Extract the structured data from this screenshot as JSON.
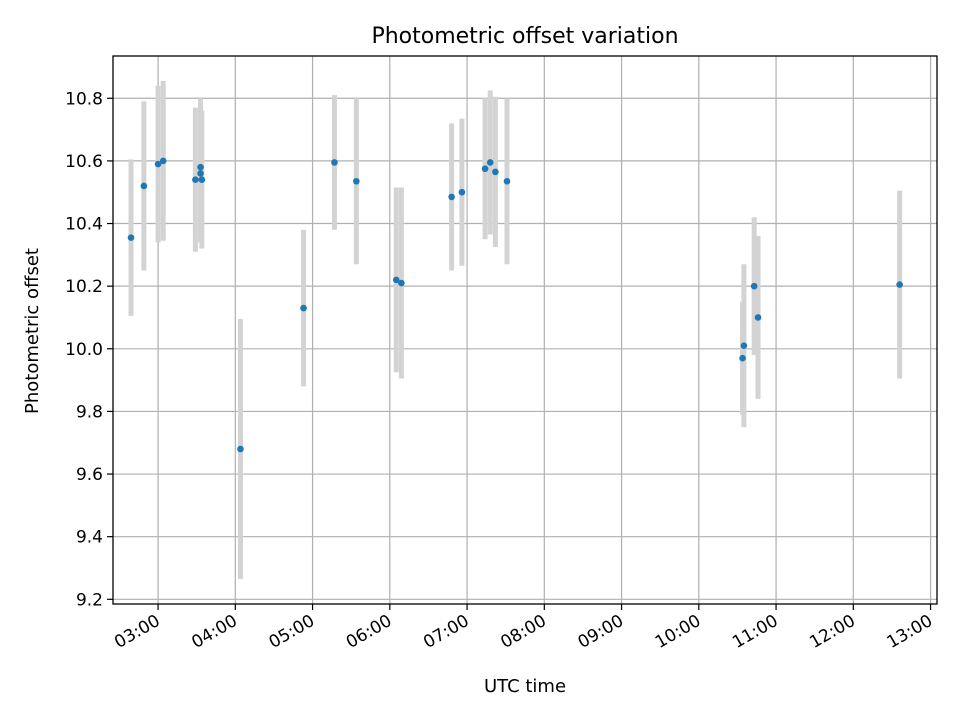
{
  "chart_data": {
    "type": "scatter",
    "title": "Photometric offset variation",
    "xlabel": "UTC time",
    "ylabel": "Photometric offset",
    "grid": true,
    "xlim": [
      "02:25",
      "13:05"
    ],
    "ylim": [
      9.185,
      10.935
    ],
    "x_ticks": [
      "03:00",
      "04:00",
      "05:00",
      "06:00",
      "07:00",
      "08:00",
      "09:00",
      "10:00",
      "11:00",
      "12:00",
      "13:00"
    ],
    "y_ticks": [
      9.2,
      9.4,
      9.6,
      9.8,
      10.0,
      10.2,
      10.4,
      10.6,
      10.8
    ],
    "y_tick_labels": [
      "9.2",
      "9.4",
      "9.6",
      "9.8",
      "10.0",
      "10.2",
      "10.4",
      "10.6",
      "10.8"
    ],
    "marker_color": "#1f77b4",
    "errorbar_color": "#d3d3d3",
    "series": [
      {
        "points": [
          {
            "x": "02:39",
            "y": 10.355,
            "err": 0.25
          },
          {
            "x": "02:49",
            "y": 10.52,
            "err": 0.27
          },
          {
            "x": "03:00",
            "y": 10.59,
            "err": 0.25
          },
          {
            "x": "03:04",
            "y": 10.6,
            "err": 0.255
          },
          {
            "x": "03:29",
            "y": 10.54,
            "err": 0.23
          },
          {
            "x": "03:33",
            "y": 10.58,
            "err": 0.22
          },
          {
            "x": "03:33",
            "y": 10.56,
            "err": 0.22
          },
          {
            "x": "03:34",
            "y": 10.54,
            "err": 0.22
          },
          {
            "x": "04:04",
            "y": 9.68,
            "err": 0.415
          },
          {
            "x": "04:53",
            "y": 10.13,
            "err": 0.25
          },
          {
            "x": "05:17",
            "y": 10.595,
            "err": 0.215
          },
          {
            "x": "05:34",
            "y": 10.535,
            "err": 0.265
          },
          {
            "x": "06:05",
            "y": 10.22,
            "err": 0.295
          },
          {
            "x": "06:09",
            "y": 10.21,
            "err": 0.305
          },
          {
            "x": "06:48",
            "y": 10.485,
            "err": 0.235
          },
          {
            "x": "06:56",
            "y": 10.5,
            "err": 0.235
          },
          {
            "x": "07:14",
            "y": 10.575,
            "err": 0.225
          },
          {
            "x": "07:18",
            "y": 10.595,
            "err": 0.23
          },
          {
            "x": "07:22",
            "y": 10.565,
            "err": 0.24
          },
          {
            "x": "07:31",
            "y": 10.535,
            "err": 0.265
          },
          {
            "x": "10:34",
            "y": 9.97,
            "err": 0.18
          },
          {
            "x": "10:35",
            "y": 10.01,
            "err": 0.26
          },
          {
            "x": "10:43",
            "y": 10.2,
            "err": 0.22
          },
          {
            "x": "10:46",
            "y": 10.1,
            "err": 0.26
          },
          {
            "x": "12:36",
            "y": 10.205,
            "err": 0.3
          }
        ]
      }
    ]
  }
}
